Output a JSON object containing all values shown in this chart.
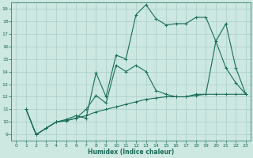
{
  "xlabel": "Humidex (Indice chaleur)",
  "bg_color": "#cce8e0",
  "grid_color": "#aacccc",
  "line_color": "#1a6b5a",
  "xlim": [
    -0.5,
    23.5
  ],
  "ylim": [
    8.5,
    19.5
  ],
  "xticks": [
    0,
    1,
    2,
    3,
    4,
    5,
    6,
    7,
    8,
    9,
    10,
    11,
    12,
    13,
    14,
    15,
    16,
    17,
    18,
    19,
    20,
    21,
    22,
    23
  ],
  "yticks": [
    9,
    10,
    11,
    12,
    13,
    14,
    15,
    16,
    17,
    18,
    19
  ],
  "line1_x": [
    1,
    2,
    3,
    4,
    5,
    6,
    7,
    8,
    9,
    10,
    11,
    12,
    13,
    14,
    15,
    16,
    17,
    18,
    19,
    20,
    21,
    22,
    23
  ],
  "line1_y": [
    11,
    9,
    9.5,
    10,
    10.1,
    10.3,
    10.5,
    10.8,
    11.0,
    11.2,
    11.4,
    11.6,
    11.8,
    11.9,
    12.0,
    12.0,
    12.0,
    12.1,
    12.2,
    12.2,
    12.2,
    12.2,
    12.2
  ],
  "line2_x": [
    1,
    2,
    3,
    4,
    5,
    6,
    7,
    8,
    9,
    10,
    11,
    12,
    13,
    14,
    15,
    16,
    17,
    18,
    19,
    20,
    21,
    22,
    23
  ],
  "line2_y": [
    11,
    9,
    9.5,
    10,
    10.2,
    10.5,
    10.3,
    13.9,
    12.0,
    15.3,
    15.0,
    18.5,
    19.3,
    18.2,
    17.7,
    17.8,
    17.8,
    18.3,
    18.3,
    16.4,
    14.3,
    13.1,
    12.2
  ],
  "line3_x": [
    1,
    2,
    3,
    4,
    5,
    6,
    7,
    8,
    9,
    10,
    11,
    12,
    13,
    14,
    15,
    16,
    17,
    18,
    19,
    20,
    21,
    22,
    23
  ],
  "line3_y": [
    11,
    9,
    9.5,
    10,
    10.1,
    10.3,
    11.0,
    12.1,
    11.5,
    14.5,
    14.0,
    14.5,
    14.0,
    12.5,
    12.2,
    12.0,
    12.0,
    12.2,
    12.2,
    16.4,
    17.8,
    14.3,
    12.2
  ]
}
